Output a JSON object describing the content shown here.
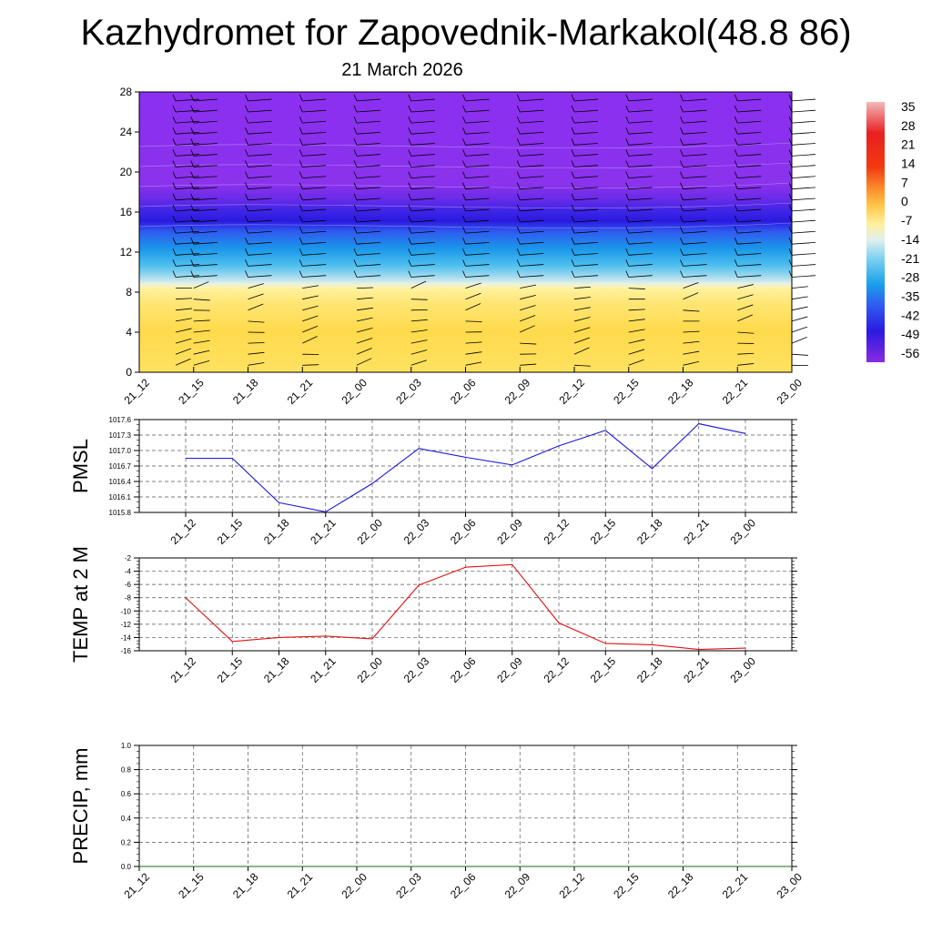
{
  "title": "Kazhydromet for Zapovednik-Markakol(48.8 86)",
  "subtitle": "21 March 2026",
  "colors": {
    "pmsl_line": "#1a1adb",
    "temp_line": "#e01414",
    "precip_line": "#1a6b1a",
    "upper_air": "#8a2be2",
    "jet_core": "#2a1ae0",
    "surface_warm": "#ffd93a"
  },
  "colorbar": {
    "labels": [
      "35",
      "28",
      "21",
      "14",
      "7",
      "0",
      "-7",
      "-14",
      "-21",
      "-28",
      "-35",
      "-42",
      "-49",
      "-56"
    ]
  },
  "chart_data": [
    {
      "type": "heatmap",
      "title": "",
      "x": [
        "21_12",
        "21_15",
        "21_18",
        "21_21",
        "22_00",
        "22_03",
        "22_06",
        "22_09",
        "22_12",
        "22_15",
        "22_18",
        "22_21",
        "23_00"
      ],
      "yticks": [
        "0",
        "4",
        "8",
        "12",
        "16",
        "20",
        "24",
        "28"
      ],
      "ylim": [
        0,
        28
      ],
      "zlim": [
        -56,
        35
      ],
      "legend": "right",
      "grid": false
    },
    {
      "type": "line",
      "ylabel": "PMSL",
      "x": [
        "21_12",
        "21_15",
        "21_18",
        "21_21",
        "22_00",
        "22_03",
        "22_06",
        "22_09",
        "22_12",
        "22_15",
        "22_18",
        "22_21",
        "23_00"
      ],
      "values": [
        1016.85,
        1016.85,
        1015.99,
        1015.81,
        1016.36,
        1017.04,
        1016.87,
        1016.72,
        1017.09,
        1017.39,
        1016.65,
        1017.52,
        1017.33
      ],
      "yticks": [
        "1015.8",
        "1016.1",
        "1016.4",
        "1016.7",
        "1017.0",
        "1017.3",
        "1017.6"
      ],
      "ylim": [
        1015.8,
        1017.6
      ],
      "grid": true
    },
    {
      "type": "line",
      "ylabel": "TEMP at 2 M",
      "x": [
        "21_12",
        "21_15",
        "21_18",
        "21_21",
        "22_00",
        "22_03",
        "22_06",
        "22_09",
        "22_12",
        "22_15",
        "22_18",
        "22_21",
        "23_00"
      ],
      "values": [
        -8.0,
        -14.6,
        -14.0,
        -13.8,
        -14.2,
        -6.1,
        -3.4,
        -3.0,
        -11.8,
        -14.9,
        -15.1,
        -15.8,
        -15.6
      ],
      "yticks": [
        "-2",
        "-4",
        "-6",
        "-8",
        "-10",
        "-12",
        "-14",
        "-16"
      ],
      "ylim": [
        -16,
        -2
      ],
      "grid": true
    },
    {
      "type": "line",
      "ylabel": "PRECIP, mm",
      "x": [
        "21_12",
        "21_15",
        "21_18",
        "21_21",
        "22_00",
        "22_03",
        "22_06",
        "22_09",
        "22_12",
        "22_15",
        "22_18",
        "22_21",
        "23_00"
      ],
      "values": [
        0,
        0,
        0,
        0,
        0,
        0,
        0,
        0,
        0,
        0,
        0,
        0,
        0
      ],
      "yticks": [
        "0.0",
        "0.2",
        "0.4",
        "0.6",
        "0.8",
        "1.0"
      ],
      "ylim": [
        0,
        1
      ],
      "grid": true
    }
  ]
}
